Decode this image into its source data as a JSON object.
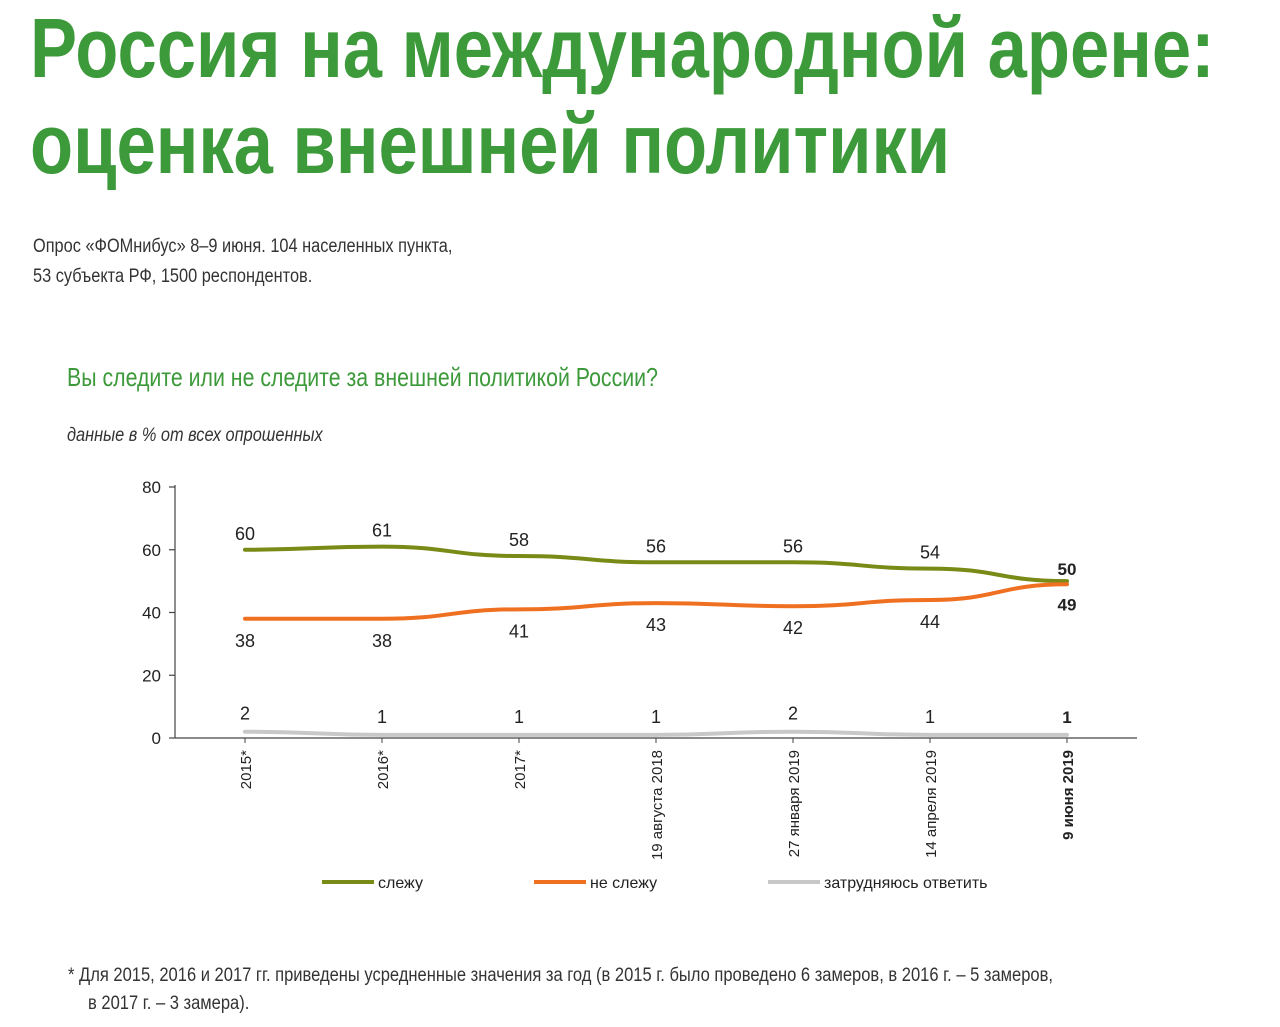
{
  "title_line1": "Россия на международной арене:",
  "title_line2": "оценка внешней политики",
  "survey_line1": "Опрос «ФОМнибус» 8–9 июня. 104 населенных пункта,",
  "survey_line2": "53 субъекта РФ, 1500 респондентов.",
  "footnote_line1": "* Для 2015, 2016 и 2017 гг. приведены усредненные значения за год (в 2015 г. было проведено 6 замеров, в 2016 г. – 5 замеров,",
  "footnote_line2": "в 2017 г. – 3 замера).",
  "chart_data": {
    "type": "line",
    "title": "Вы следите или не следите за внешней политикой России?",
    "subtitle": "данные в % от всех опрошенных",
    "categories": [
      "2015*",
      "2016*",
      "2017*",
      "19 августа 2018",
      "27 января 2019",
      "14 апреля 2019",
      "9 июня 2019"
    ],
    "highlight_category_index": 6,
    "ylim": [
      0,
      80
    ],
    "yticks": [
      0,
      20,
      40,
      60,
      80
    ],
    "grid": false,
    "legend_position": "bottom",
    "series": [
      {
        "name": "слежу",
        "color": "#7a8a16",
        "values": [
          60,
          61,
          58,
          56,
          56,
          54,
          50
        ],
        "label_side": "above"
      },
      {
        "name": "не слежу",
        "color": "#f07022",
        "values": [
          38,
          38,
          41,
          43,
          42,
          44,
          49
        ],
        "label_side": "below"
      },
      {
        "name": "затрудняюсь ответить",
        "color": "#c8c8c8",
        "values": [
          2,
          1,
          1,
          1,
          2,
          1,
          1
        ],
        "label_side": "above"
      }
    ]
  }
}
